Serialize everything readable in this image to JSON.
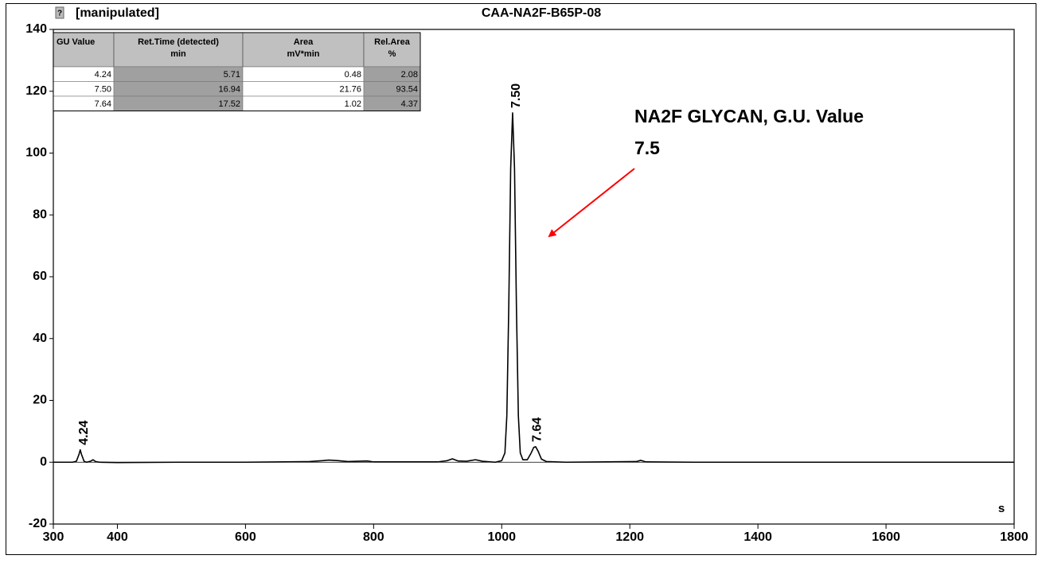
{
  "header": {
    "status": "[manipulated]"
  },
  "chart_data": {
    "type": "line",
    "title": "CAA-NA2F-B65P-08",
    "x_unit": "s",
    "x": [
      300,
      330,
      336,
      340,
      342,
      344,
      348,
      352,
      358,
      362,
      366,
      372,
      400,
      500,
      600,
      700,
      720,
      730,
      745,
      760,
      790,
      800,
      900,
      915,
      923,
      932,
      945,
      959,
      970,
      990,
      1000,
      1005,
      1008,
      1011,
      1014,
      1017,
      1020,
      1023,
      1026,
      1029,
      1033,
      1040,
      1046,
      1050,
      1053,
      1057,
      1062,
      1070,
      1100,
      1210,
      1217,
      1225,
      1300,
      1500,
      1700,
      1800
    ],
    "values": [
      0,
      0,
      0.3,
      2.5,
      4,
      2.5,
      0.3,
      0,
      0.3,
      0.8,
      0.2,
      0,
      -0.1,
      0,
      0,
      0.2,
      0.5,
      0.7,
      0.5,
      0.2,
      0.4,
      0.1,
      0.1,
      0.5,
      1.1,
      0.4,
      0.3,
      0.8,
      0.3,
      0,
      0.5,
      3,
      15,
      50,
      95,
      113,
      95,
      50,
      15,
      3,
      0.8,
      0.8,
      3,
      4.8,
      5,
      3.5,
      1,
      0.2,
      0,
      0.2,
      0.6,
      0.1,
      0,
      0,
      0,
      0
    ],
    "color": "#000000",
    "xlim": [
      300,
      1800
    ],
    "ylim": [
      -20,
      140
    ],
    "xticks": [
      300,
      400,
      600,
      800,
      1000,
      1200,
      1400,
      1600,
      1800
    ],
    "yticks": [
      -20,
      0,
      20,
      40,
      60,
      80,
      100,
      120,
      140
    ],
    "peak_labels": [
      {
        "text": "4.24",
        "x": 342,
        "y": 4
      },
      {
        "text": "7.50",
        "x": 1017,
        "y": 113
      },
      {
        "text": "7.64",
        "x": 1050,
        "y": 5
      }
    ],
    "annotation": {
      "lines": [
        "NA2F GLYCAN, G.U. Value",
        "7.5"
      ],
      "color": "#ff0000"
    }
  },
  "table": {
    "columns": [
      [
        "GU Value"
      ],
      [
        "Ret.Time (detected)",
        "min"
      ],
      [
        "Area",
        "mV*min"
      ],
      [
        "Rel.Area",
        "%"
      ]
    ],
    "rows": [
      [
        "4.24",
        "5.71",
        "0.48",
        "2.08"
      ],
      [
        "7.50",
        "16.94",
        "21.76",
        "93.54"
      ],
      [
        "7.64",
        "17.52",
        "1.02",
        "4.37"
      ]
    ]
  }
}
